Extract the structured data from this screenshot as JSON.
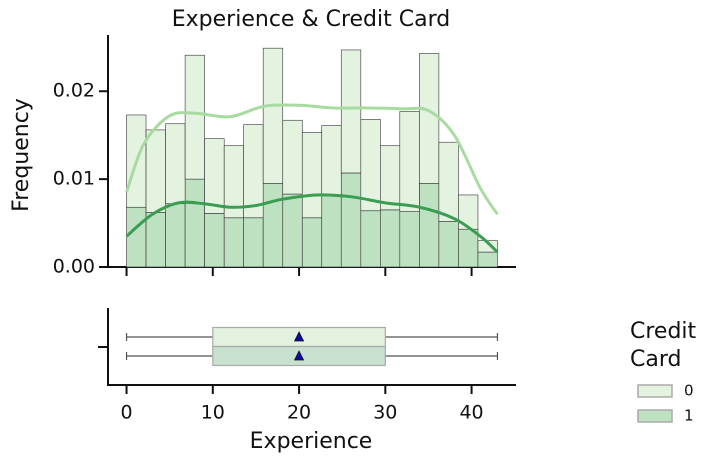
{
  "chart_data": [
    {
      "type": "histogram",
      "title": "Experience & Credit Card",
      "ylabel": "Frequency",
      "legend_title": "Credit Card",
      "bins": [
        0,
        2.26,
        4.53,
        6.79,
        9.05,
        11.32,
        13.58,
        15.84,
        18.11,
        20.37,
        22.63,
        24.89,
        27.16,
        29.42,
        31.68,
        33.95,
        36.21,
        38.47,
        40.74,
        43
      ],
      "stacked": true,
      "series": [
        {
          "name": "0",
          "color": "#e3f3e0",
          "line_color": "#a8dba0",
          "values": [
            0.0105,
            0.0094,
            0.0091,
            0.0141,
            0.0085,
            0.0082,
            0.0106,
            0.0154,
            0.0084,
            0.0097,
            0.008,
            0.014,
            0.0104,
            0.0073,
            0.0114,
            0.0148,
            0.009,
            0.0039,
            0.0013
          ],
          "kde_x": [
            0,
            2,
            5,
            8,
            12,
            16,
            20,
            24,
            28,
            32,
            35,
            38,
            41,
            43
          ],
          "kde_values": [
            0.0085,
            0.014,
            0.0172,
            0.0175,
            0.0171,
            0.0183,
            0.0184,
            0.0181,
            0.0181,
            0.018,
            0.0178,
            0.015,
            0.009,
            0.006
          ]
        },
        {
          "name": "1",
          "color": "#bde1c1",
          "line_color": "#3a9d52",
          "values": [
            0.0068,
            0.0062,
            0.0072,
            0.01,
            0.0061,
            0.0056,
            0.0056,
            0.0095,
            0.0083,
            0.0056,
            0.0081,
            0.0107,
            0.0064,
            0.0065,
            0.0063,
            0.0095,
            0.0052,
            0.0043,
            0.0017
          ],
          "kde_x": [
            0,
            3,
            6,
            9,
            12,
            15,
            18,
            22,
            26,
            30,
            34,
            38,
            41,
            43
          ],
          "kde_values": [
            0.0035,
            0.006,
            0.0073,
            0.0072,
            0.0068,
            0.007,
            0.0077,
            0.0082,
            0.008,
            0.0073,
            0.0068,
            0.0055,
            0.0035,
            0.0017
          ]
        }
      ],
      "xlim": [
        -2.15,
        45.15
      ],
      "xticks": [
        0,
        10,
        20,
        30,
        40
      ],
      "ylim": [
        0,
        0.0264
      ],
      "yticks": [
        {
          "value": 0,
          "label": "0.00"
        },
        {
          "value": 0.01,
          "label": "0.01"
        },
        {
          "value": 0.02,
          "label": "0.02"
        }
      ]
    },
    {
      "type": "box",
      "xlabel": "Experience",
      "series": [
        {
          "color": "#e3f2de",
          "min": 0,
          "q1": 10,
          "q3": 30,
          "max": 43,
          "mean": 20
        },
        {
          "color": "#c7e0d0",
          "min": 0,
          "q1": 10,
          "q3": 30,
          "max": 43,
          "mean": 20
        }
      ],
      "xlim": [
        -2.15,
        45.15
      ],
      "xticks": [
        0,
        10,
        20,
        30,
        40
      ]
    }
  ]
}
